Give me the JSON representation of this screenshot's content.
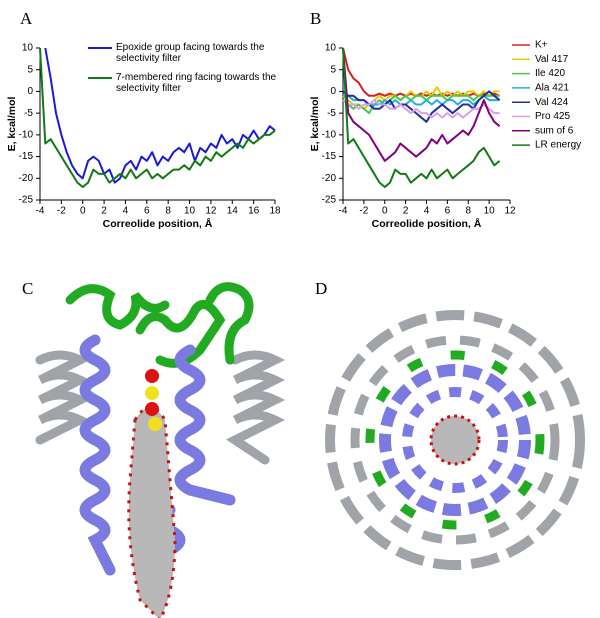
{
  "chart_data": [
    {
      "type": "line",
      "panel": "A",
      "x_label": "Correolide position, Å",
      "y_label": "E, kcal/mol",
      "legend": "inside top",
      "xlim": [
        -4,
        18
      ],
      "xticks": [
        -4,
        -2,
        0,
        2,
        4,
        6,
        8,
        10,
        12,
        14,
        16,
        18
      ],
      "ylim": [
        -25,
        10
      ],
      "yticks": [
        -25,
        -20,
        -15,
        -10,
        -5,
        0,
        5,
        10
      ],
      "x": [
        -4,
        -3.5,
        -3,
        -2.5,
        -2,
        -1.5,
        -1,
        -0.5,
        0,
        0.5,
        1,
        1.5,
        2,
        2.5,
        3,
        3.5,
        4,
        4.5,
        5,
        5.5,
        6,
        6.5,
        7,
        7.5,
        8,
        8.5,
        9,
        9.5,
        10,
        10.5,
        11,
        11.5,
        12,
        12.5,
        13,
        13.5,
        14,
        14.5,
        15,
        15.5,
        16,
        16.5,
        17,
        17.5,
        18
      ],
      "series": [
        {
          "name": "Epoxide group facing towards the selectivity filter",
          "color": "#1a1ad6",
          "values": [
            null,
            10,
            3,
            -5,
            -10,
            -14,
            -17,
            -19,
            -20,
            -16,
            -15,
            -16,
            -19,
            -18,
            -21,
            -20,
            -17,
            -16,
            -18,
            -15,
            -16,
            -14,
            -17,
            -15,
            -16,
            -14,
            -13,
            -14,
            -12,
            -16,
            -13,
            -14,
            -12,
            -13,
            -10,
            -12,
            -11,
            -13,
            -10,
            -11,
            -9,
            -11,
            -10,
            -8,
            -9
          ]
        },
        {
          "name": "7-membered ring facing towards the selectivity filter",
          "color": "#127a12",
          "values": [
            10,
            -12,
            -11,
            -13,
            -15,
            -17,
            -19,
            -21,
            -22,
            -21,
            -18,
            -19,
            -19,
            -21,
            -20,
            -19,
            -20,
            -18,
            -20,
            -19,
            -18,
            -20,
            -19,
            -20,
            -19,
            -18,
            -18,
            -17,
            -18,
            -16,
            -17,
            -15,
            -16,
            -14,
            -15,
            -14,
            -13,
            -12,
            -13,
            -11,
            -12,
            -11,
            -10,
            -10,
            -9
          ]
        }
      ]
    },
    {
      "type": "line",
      "panel": "B",
      "x_label": "Correolide position, Å",
      "y_label": "E, kcal/mol",
      "legend": "outside right",
      "xlim": [
        -4,
        12
      ],
      "xticks": [
        -4,
        -2,
        0,
        2,
        4,
        6,
        8,
        10,
        12
      ],
      "ylim": [
        -25,
        10
      ],
      "yticks": [
        -25,
        -20,
        -15,
        -10,
        -5,
        0,
        5,
        10
      ],
      "x": [
        -4,
        -3.5,
        -3,
        -2.5,
        -2,
        -1.5,
        -1,
        -0.5,
        0,
        0.5,
        1,
        1.5,
        2,
        2.5,
        3,
        3.5,
        4,
        4.5,
        5,
        5.5,
        6,
        6.5,
        7,
        7.5,
        8,
        8.5,
        9,
        9.5,
        10,
        10.5,
        11
      ],
      "series": [
        {
          "name": "K+",
          "color": "#d62020",
          "values": [
            10,
            5,
            3,
            2,
            0,
            -1,
            -1,
            -0.5,
            -1,
            -0.5,
            -1,
            -0.5,
            -1,
            -0.5,
            -1,
            -0.5,
            -1,
            -0.5,
            -1,
            -0.5,
            -1,
            -0.5,
            -1,
            -0.5,
            -1,
            -0.5,
            -1,
            -0.5,
            -1,
            -0.5,
            -1
          ]
        },
        {
          "name": "Val 417",
          "color": "#f0c800",
          "values": [
            -1,
            -2,
            -3,
            -3,
            -4,
            -3,
            -2,
            -1,
            -2,
            -1,
            -1,
            -2,
            -1,
            0,
            -1,
            -1,
            0,
            -1,
            1,
            -1,
            0,
            -1,
            0,
            -1,
            0,
            0,
            -1,
            0,
            -1,
            0,
            0
          ]
        },
        {
          "name": "Ile 420",
          "color": "#44cc44",
          "values": [
            -2,
            -3,
            -4,
            -3,
            -4,
            -5,
            -3,
            -2,
            -3,
            -2,
            -1,
            -2,
            -1,
            -2,
            -1,
            -1,
            -2,
            -1,
            -1,
            -1,
            -2,
            -1,
            -1,
            -1,
            -1,
            -2,
            -1,
            -1,
            -1,
            -1,
            -1
          ]
        },
        {
          "name": "Ala 421",
          "color": "#20b0e0",
          "values": [
            -1,
            -1,
            -2,
            -2,
            -2,
            -3,
            -3,
            -3,
            -2,
            -3,
            -2,
            -3,
            -3,
            -2,
            -3,
            -3,
            -2,
            -3,
            -2,
            -3,
            -2,
            -2,
            -3,
            -2,
            -2,
            -3,
            -2,
            -1,
            -2,
            -2,
            -2
          ]
        },
        {
          "name": "Val 424",
          "color": "#2a2aa0",
          "values": [
            0,
            -1,
            -1,
            -2,
            -2,
            -3,
            -4,
            -4,
            -3,
            -2,
            -4,
            -3,
            -3,
            -4,
            -5,
            -6,
            -7,
            -5,
            -4,
            -3,
            -4,
            -5,
            -4,
            -3,
            -3,
            -4,
            -2,
            -1,
            0,
            -1,
            -2
          ]
        },
        {
          "name": "Pro 425",
          "color": "#d8a0e8",
          "values": [
            -2,
            -3,
            -3,
            -4,
            -3,
            -3,
            -2,
            -3,
            -3,
            -4,
            -4,
            -3,
            -4,
            -5,
            -4,
            -5,
            -5,
            -6,
            -5,
            -6,
            -5,
            -6,
            -5,
            -6,
            -5,
            -4,
            -4,
            -3,
            -4,
            -5,
            -5
          ]
        },
        {
          "name": "sum of 6",
          "color": "#800080",
          "values": [
            10,
            -5,
            -7,
            -8,
            -9,
            -10,
            -12,
            -14,
            -16,
            -15,
            -14,
            -12,
            -13,
            -14,
            -15,
            -14,
            -13,
            -11,
            -12,
            -10,
            -12,
            -11,
            -10,
            -9,
            -10,
            -8,
            -5,
            -2,
            -5,
            -7,
            -8
          ]
        },
        {
          "name": "LR energy",
          "color": "#127a12",
          "values": [
            10,
            -12,
            -11,
            -13,
            -15,
            -17,
            -19,
            -21,
            -22,
            -21,
            -18,
            -19,
            -19,
            -21,
            -20,
            -19,
            -20,
            -18,
            -20,
            -19,
            -18,
            -20,
            -19,
            -18,
            -17,
            -16,
            -14,
            -13,
            -15,
            -17,
            -16
          ]
        }
      ]
    }
  ],
  "images": [
    {
      "panel": "C"
    },
    {
      "panel": "D"
    }
  ]
}
